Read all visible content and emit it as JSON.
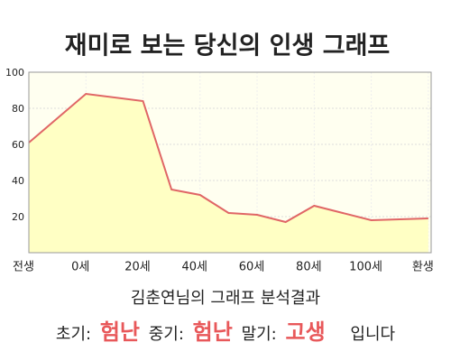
{
  "chart_data": {
    "type": "area",
    "title": "재미로 보는 당신의 인생 그래프",
    "x": [
      -20,
      0,
      20,
      30,
      40,
      50,
      60,
      70,
      80,
      90,
      100,
      110,
      120
    ],
    "values": [
      61,
      88,
      84,
      35,
      32,
      22,
      21,
      17,
      26,
      22,
      18,
      18.5,
      19
    ],
    "color": "#e06666",
    "fill": "#ffffc4",
    "xlim": [
      -20,
      121
    ],
    "ylim": [
      0,
      100
    ],
    "xticks": [
      {
        "value": -20,
        "label": "전생"
      },
      {
        "value": 0,
        "label": "0세"
      },
      {
        "value": 20,
        "label": "20세"
      },
      {
        "value": 40,
        "label": "40세"
      },
      {
        "value": 60,
        "label": "60세"
      },
      {
        "value": 80,
        "label": "80세"
      },
      {
        "value": 100,
        "label": "100세"
      },
      {
        "value": 120,
        "label": "환생"
      }
    ],
    "yticks": [
      20,
      40,
      60,
      80,
      100
    ],
    "grid": true
  },
  "analysis": {
    "heading": "김춘연님의 그래프 분석결과",
    "items": [
      {
        "label": "초기:",
        "value": "험난"
      },
      {
        "label": "중기:",
        "value": "험난"
      },
      {
        "label": "말기:",
        "value": "고생"
      }
    ],
    "suffix": "입니다"
  }
}
